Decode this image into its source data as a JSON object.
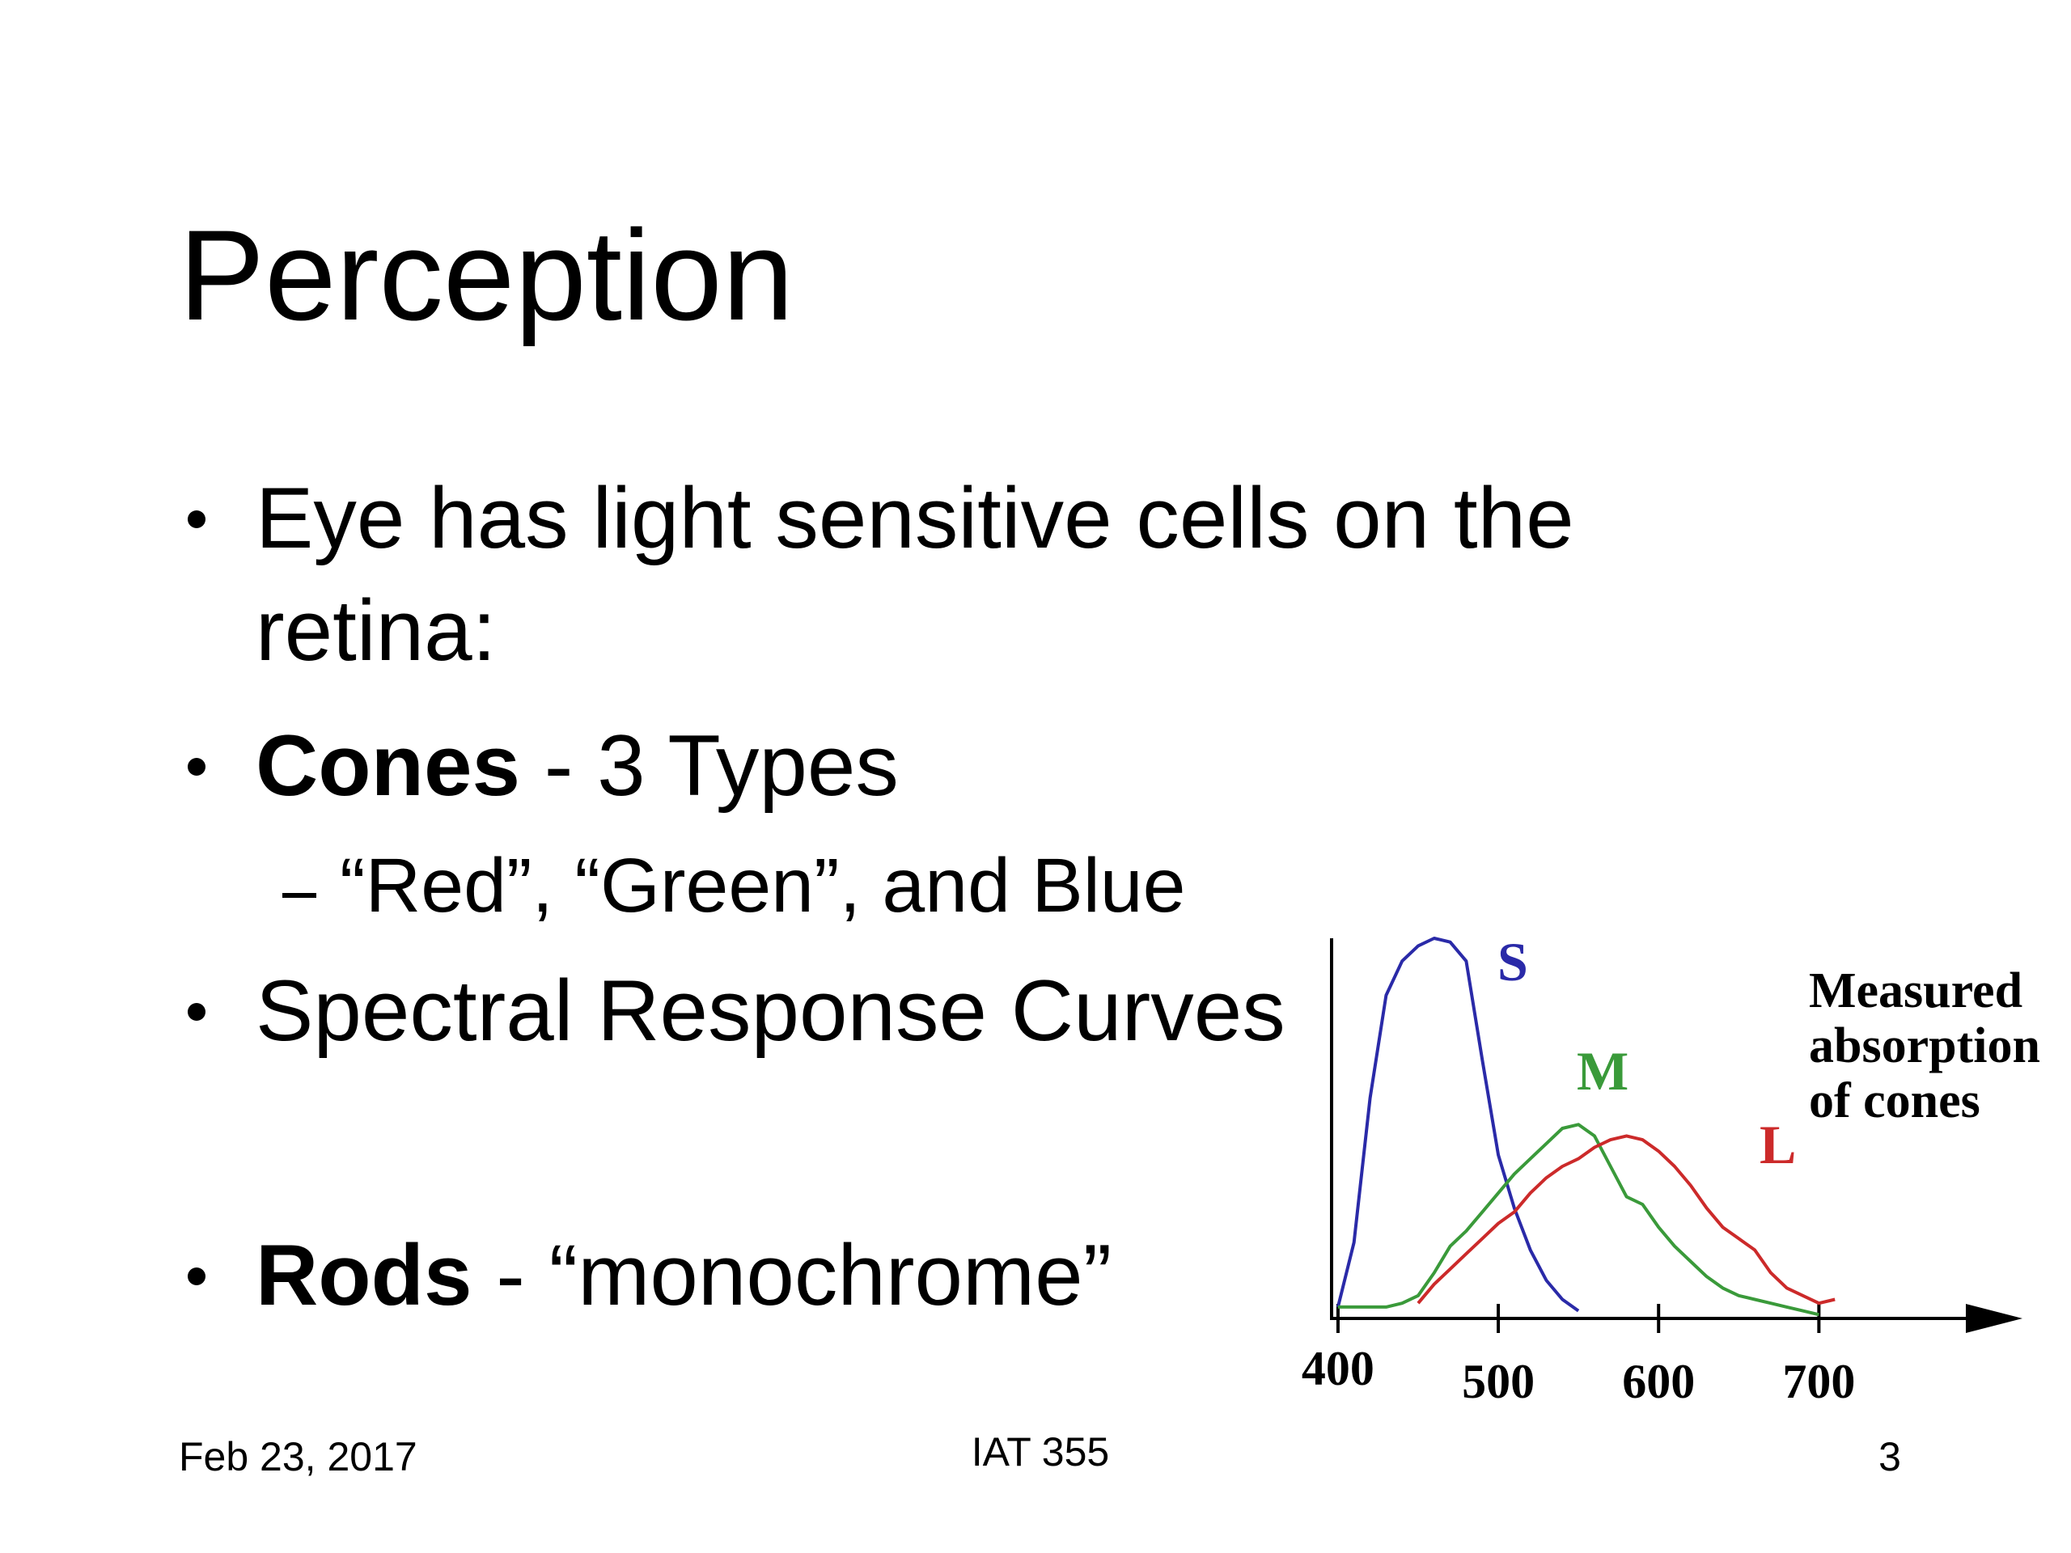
{
  "slide": {
    "title": "Perception",
    "bullets": [
      {
        "lines": [
          "Eye has light sensitive cells on the",
          "retina:"
        ]
      },
      {
        "bold": "Cones",
        "rest": " - 3 Types"
      },
      {
        "sub": "“Red”, “Green”, and Blue"
      },
      {
        "text": "Spectral Response Curves"
      },
      {
        "bold": "Rods",
        "rest": " - “monochrome”"
      }
    ],
    "footer": {
      "date": "Feb 23, 2017",
      "course": "IAT 355",
      "page": "3"
    }
  },
  "chart_data": {
    "type": "line",
    "title_lines": [
      "Measured",
      "absorption",
      "of cones"
    ],
    "x": [
      400,
      410,
      420,
      430,
      440,
      450,
      460,
      470,
      480,
      490,
      500,
      510,
      520,
      530,
      540,
      550,
      560,
      570,
      580,
      590,
      600,
      610,
      620,
      630,
      640,
      650,
      660,
      670,
      680,
      690,
      700,
      710,
      720
    ],
    "xlim": [
      396,
      827
    ],
    "xticks": [
      400,
      500,
      600,
      700
    ],
    "ylim": [
      0,
      100
    ],
    "series": [
      {
        "name": "S",
        "color": "#2a2aa8",
        "values": [
          3,
          20,
          58,
          85,
          94,
          98,
          100,
          99,
          94,
          68,
          43,
          29,
          18,
          10,
          5,
          2,
          null,
          null,
          null,
          null,
          null,
          null,
          null,
          null,
          null,
          null,
          null,
          null,
          null,
          null,
          null,
          null,
          null
        ]
      },
      {
        "name": "M",
        "color": "#3a9a3a",
        "values": [
          3,
          3,
          3,
          3,
          4,
          6,
          12,
          19,
          23,
          28,
          33,
          38,
          42,
          46,
          50,
          51,
          48,
          40,
          32,
          30,
          24,
          19,
          15,
          11,
          8,
          6,
          5,
          4,
          3,
          2,
          1,
          null,
          null
        ]
      },
      {
        "name": "L",
        "color": "#cc2a2a",
        "values": [
          null,
          null,
          null,
          null,
          null,
          4,
          9,
          13,
          17,
          21,
          25,
          28,
          33,
          37,
          40,
          42,
          45,
          47,
          48,
          47,
          44,
          40,
          35,
          29,
          24,
          21,
          18,
          12,
          8,
          6,
          4,
          5,
          null
        ]
      }
    ]
  }
}
